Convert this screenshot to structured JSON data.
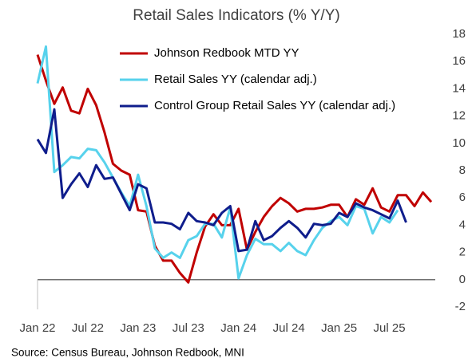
{
  "chart_data": {
    "type": "line",
    "title": "Retail Sales Indicators (% Y/Y)",
    "source": "Source: Census Bureau, Johnson Redbook, MNI",
    "categories": [
      "Jan 22",
      null,
      null,
      null,
      null,
      null,
      "Jul 22",
      null,
      null,
      null,
      null,
      null,
      "Jan 23",
      null,
      null,
      null,
      null,
      null,
      "Jul 23",
      null,
      null,
      null,
      null,
      null,
      "Jan 24",
      null,
      null,
      null,
      null,
      null,
      "Jul 24",
      null,
      null,
      null,
      null,
      null,
      "Jan 25",
      null,
      null,
      null,
      null,
      null,
      "Jul 25",
      null,
      null,
      null,
      null,
      null
    ],
    "series": [
      {
        "name": "Johnson Redbook MTD YY",
        "color": "#c00000",
        "values": [
          16.5,
          14.6,
          12.9,
          14.1,
          12.4,
          12.2,
          14.0,
          12.8,
          10.8,
          8.5,
          8.0,
          7.7,
          5.1,
          5.0,
          2.5,
          1.4,
          1.4,
          0.5,
          -0.2,
          2.0,
          3.9,
          4.8,
          4.0,
          4.0,
          5.2,
          2.2,
          3.5,
          4.6,
          5.4,
          6.0,
          5.6,
          5.0,
          5.2,
          5.2,
          5.3,
          5.5,
          5.5,
          4.6,
          5.9,
          5.5,
          6.7,
          5.3,
          5.0,
          6.2,
          6.2,
          5.4,
          6.4,
          5.7
        ]
      },
      {
        "name": "Retail Sales YY (calendar adj.)",
        "color": "#57d2ec",
        "values": [
          14.4,
          17.1,
          7.9,
          8.4,
          9.0,
          8.9,
          9.6,
          9.5,
          8.6,
          7.5,
          6.4,
          5.4,
          7.7,
          5.4,
          2.3,
          1.6,
          2.0,
          1.6,
          2.9,
          3.2,
          4.1,
          4.1,
          3.1,
          5.3,
          0.1,
          1.8,
          3.0,
          2.6,
          2.6,
          2.1,
          2.7,
          2.1,
          1.8,
          2.9,
          3.8,
          4.3,
          4.6,
          4.0,
          5.4,
          5.2,
          3.4,
          4.6,
          4.2,
          5.1,
          null,
          null,
          null,
          null
        ]
      },
      {
        "name": "Control Group Retail Sales YY (calendar adj.)",
        "color": "#0f1d8c",
        "values": [
          10.3,
          9.3,
          12.5,
          6.0,
          7.0,
          7.8,
          6.8,
          8.4,
          7.4,
          7.5,
          6.3,
          5.1,
          7.0,
          6.7,
          4.2,
          4.2,
          4.1,
          3.7,
          4.9,
          4.3,
          4.2,
          4.0,
          4.9,
          5.4,
          2.1,
          2.2,
          4.3,
          2.9,
          3.2,
          3.8,
          4.3,
          3.8,
          3.1,
          4.1,
          4.0,
          4.1,
          4.9,
          4.6,
          5.6,
          5.3,
          5.1,
          4.8,
          4.5,
          5.8,
          4.2,
          null,
          null,
          null
        ]
      }
    ],
    "ylim": [
      -2,
      18
    ],
    "yticks": [
      -2,
      0,
      2,
      4,
      6,
      8,
      10,
      12,
      14,
      16,
      18
    ]
  }
}
